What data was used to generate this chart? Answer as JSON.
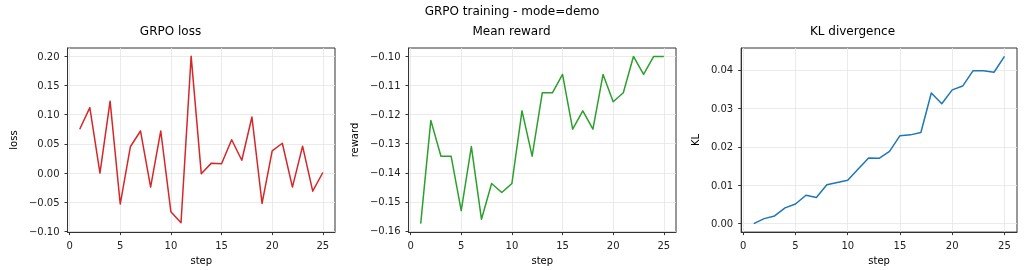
{
  "chart_data": [
    {
      "type": "line",
      "title": "GRPO loss",
      "xlabel": "step",
      "ylabel": "loss",
      "annotations": [
        "GRPO training - mode=demo"
      ],
      "grid": true,
      "x": [
        1,
        2,
        3,
        4,
        5,
        6,
        7,
        8,
        9,
        10,
        11,
        12,
        13,
        14,
        15,
        16,
        17,
        18,
        19,
        20,
        21,
        22,
        23,
        24,
        25
      ],
      "series": [
        {
          "color": "#d62728",
          "values": [
            0.075,
            0.112,
            0.0,
            0.123,
            -0.053,
            0.045,
            0.072,
            -0.024,
            0.072,
            -0.066,
            -0.085,
            0.2,
            -0.001,
            0.017,
            0.016,
            0.057,
            0.022,
            0.096,
            -0.052,
            0.038,
            0.051,
            -0.024,
            0.046,
            -0.031,
            0.001
          ]
        }
      ],
      "xlim": [
        -0.2,
        26.2
      ],
      "xticks": [
        0,
        5,
        10,
        15,
        20,
        25
      ],
      "ylim": [
        -0.101,
        0.214
      ],
      "yticks": [
        {
          "value": -0.1,
          "label": "−0.10"
        },
        {
          "value": -0.05,
          "label": "−0.05"
        },
        {
          "value": 0,
          "label": "0.00"
        },
        {
          "value": 0.05,
          "label": "0.05"
        },
        {
          "value": 0.1,
          "label": "0.10"
        },
        {
          "value": 0.15,
          "label": "0.15"
        },
        {
          "value": 0.2,
          "label": "0.20"
        }
      ]
    },
    {
      "type": "line",
      "title": "Mean reward",
      "xlabel": "step",
      "ylabel": "reward",
      "grid": true,
      "x": [
        1,
        2,
        3,
        4,
        5,
        6,
        7,
        8,
        9,
        10,
        11,
        12,
        13,
        14,
        15,
        16,
        17,
        18,
        19,
        20,
        21,
        22,
        23,
        24,
        25
      ],
      "series": [
        {
          "color": "#2ca02c",
          "values": [
            -0.1575,
            -0.122,
            -0.1343,
            -0.1343,
            -0.153,
            -0.131,
            -0.156,
            -0.1437,
            -0.1468,
            -0.1437,
            -0.1187,
            -0.1343,
            -0.1125,
            -0.1125,
            -0.1062,
            -0.125,
            -0.1187,
            -0.125,
            -0.1062,
            -0.1156,
            -0.1125,
            -0.1,
            -0.1062,
            -0.1,
            -0.1
          ]
        }
      ],
      "xlim": [
        -0.2,
        26.2
      ],
      "xticks": [
        0,
        5,
        10,
        15,
        20,
        25
      ],
      "ylim": [
        -0.1604,
        -0.0971
      ],
      "yticks": [
        {
          "value": -0.16,
          "label": "−0.16"
        },
        {
          "value": -0.15,
          "label": "−0.15"
        },
        {
          "value": -0.14,
          "label": "−0.14"
        },
        {
          "value": -0.13,
          "label": "−0.13"
        },
        {
          "value": -0.12,
          "label": "−0.12"
        },
        {
          "value": -0.11,
          "label": "−0.11"
        },
        {
          "value": -0.1,
          "label": "−0.10"
        }
      ]
    },
    {
      "type": "line",
      "title": "KL divergence",
      "xlabel": "step",
      "ylabel": "KL",
      "grid": true,
      "x": [
        1,
        2,
        3,
        4,
        5,
        6,
        7,
        8,
        9,
        10,
        11,
        12,
        13,
        14,
        15,
        16,
        17,
        18,
        19,
        20,
        21,
        22,
        23,
        24,
        25
      ],
      "series": [
        {
          "color": "#1f77b4",
          "values": [
            0.0,
            0.0013,
            0.002,
            0.0041,
            0.0051,
            0.0074,
            0.0068,
            0.0101,
            0.0107,
            0.0113,
            0.0142,
            0.0171,
            0.017,
            0.0188,
            0.0229,
            0.0231,
            0.0237,
            0.034,
            0.0312,
            0.0348,
            0.0358,
            0.0398,
            0.0398,
            0.0394,
            0.0435
          ]
        }
      ],
      "xlim": [
        -0.2,
        26.2
      ],
      "xticks": [
        0,
        5,
        10,
        15,
        20,
        25
      ],
      "ylim": [
        -0.0022,
        0.0457
      ],
      "yticks": [
        {
          "value": 0,
          "label": "0.00"
        },
        {
          "value": 0.01,
          "label": "0.01"
        },
        {
          "value": 0.02,
          "label": "0.02"
        },
        {
          "value": 0.03,
          "label": "0.03"
        },
        {
          "value": 0.04,
          "label": "0.04"
        }
      ]
    }
  ]
}
